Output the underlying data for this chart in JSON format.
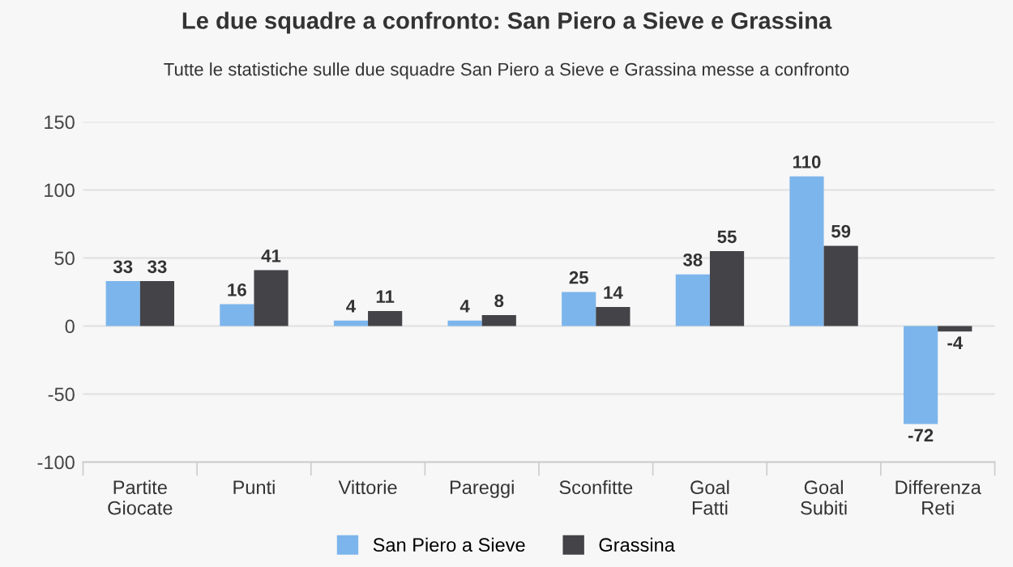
{
  "chart_data": {
    "type": "bar",
    "title": "Le due squadre a confronto: San Piero a Sieve e Grassina",
    "subtitle": "Tutte le statistiche sulle due squadre San Piero a Sieve e Grassina messe a confronto",
    "categories": [
      "Partite\nGiocate",
      "Punti",
      "Vittorie",
      "Pareggi",
      "Sconfitte",
      "Goal\nFatti",
      "Goal\nSubiti",
      "Differenza\nReti"
    ],
    "series": [
      {
        "name": "San Piero a Sieve",
        "color": "#7cb5ec",
        "values": [
          33,
          16,
          4,
          4,
          25,
          38,
          110,
          -72
        ]
      },
      {
        "name": "Grassina",
        "color": "#434348",
        "values": [
          33,
          41,
          11,
          8,
          14,
          55,
          59,
          -4
        ]
      }
    ],
    "ylim": [
      -100,
      150
    ],
    "yticks": [
      -100,
      -50,
      0,
      50,
      100,
      150
    ],
    "grid": "y",
    "legend": "bottom",
    "data_labels": true
  }
}
